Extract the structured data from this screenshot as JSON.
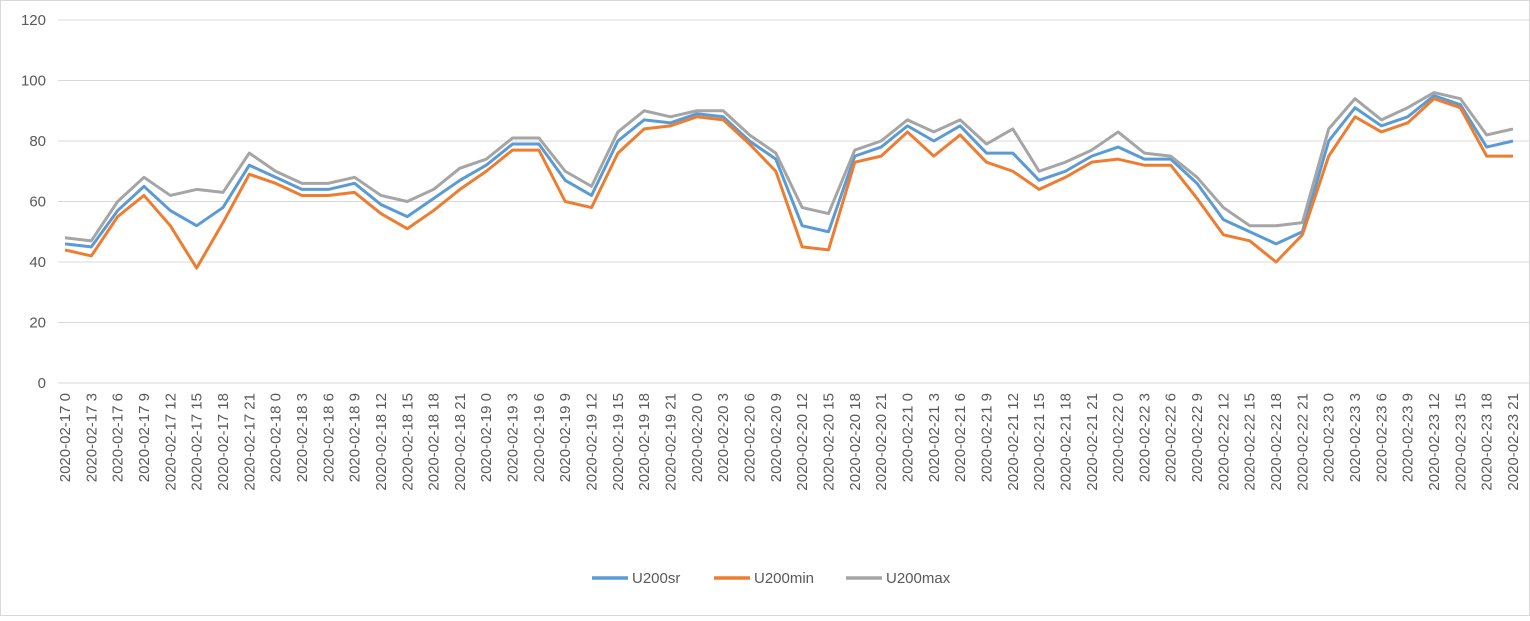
{
  "chart_data": {
    "type": "line",
    "categories": [
      "2020-02-17 0",
      "2020-02-17 3",
      "2020-02-17 6",
      "2020-02-17 9",
      "2020-02-17 12",
      "2020-02-17 15",
      "2020-02-17 18",
      "2020-02-17 21",
      "2020-02-18 0",
      "2020-02-18 3",
      "2020-02-18 6",
      "2020-02-18 9",
      "2020-02-18 12",
      "2020-02-18 15",
      "2020-02-18 18",
      "2020-02-18 21",
      "2020-02-19 0",
      "2020-02-19 3",
      "2020-02-19 6",
      "2020-02-19 9",
      "2020-02-19 12",
      "2020-02-19 15",
      "2020-02-19 18",
      "2020-02-19 21",
      "2020-02-20 0",
      "2020-02-20 3",
      "2020-02-20 6",
      "2020-02-20 9",
      "2020-02-20 12",
      "2020-02-20 15",
      "2020-02-20 18",
      "2020-02-20 21",
      "2020-02-21 0",
      "2020-02-21 3",
      "2020-02-21 6",
      "2020-02-21 9",
      "2020-02-21 12",
      "2020-02-21 15",
      "2020-02-21 18",
      "2020-02-21 21",
      "2020-02-22 0",
      "2020-02-22 3",
      "2020-02-22 6",
      "2020-02-22 9",
      "2020-02-22 12",
      "2020-02-22 15",
      "2020-02-22 18",
      "2020-02-22 21",
      "2020-02-23 0",
      "2020-02-23 3",
      "2020-02-23 6",
      "2020-02-23 9",
      "2020-02-23 12",
      "2020-02-23 15",
      "2020-02-23 18",
      "2020-02-23 21"
    ],
    "series": [
      {
        "name": "U200sr",
        "color": "#5b9bd5",
        "values": [
          46,
          45,
          57,
          65,
          57,
          52,
          58,
          72,
          68,
          64,
          64,
          66,
          59,
          55,
          61,
          67,
          72,
          79,
          79,
          67,
          62,
          80,
          87,
          86,
          89,
          88,
          80,
          74,
          52,
          50,
          75,
          78,
          85,
          80,
          85,
          76,
          76,
          67,
          70,
          75,
          78,
          74,
          74,
          66,
          54,
          50,
          46,
          50,
          80,
          91,
          85,
          88,
          95,
          92,
          78,
          80
        ]
      },
      {
        "name": "U200min",
        "color": "#ed7d31",
        "values": [
          44,
          42,
          55,
          62,
          52,
          38,
          53,
          69,
          66,
          62,
          62,
          63,
          56,
          51,
          57,
          64,
          70,
          77,
          77,
          60,
          58,
          76,
          84,
          85,
          88,
          87,
          79,
          70,
          45,
          44,
          73,
          75,
          83,
          75,
          82,
          73,
          70,
          64,
          68,
          73,
          74,
          72,
          72,
          61,
          49,
          47,
          40,
          49,
          75,
          88,
          83,
          86,
          94,
          91,
          75,
          75
        ]
      },
      {
        "name": "U200max",
        "color": "#a5a5a5",
        "values": [
          48,
          47,
          60,
          68,
          62,
          64,
          63,
          76,
          70,
          66,
          66,
          68,
          62,
          60,
          64,
          71,
          74,
          81,
          81,
          70,
          65,
          83,
          90,
          88,
          90,
          90,
          82,
          76,
          58,
          56,
          77,
          80,
          87,
          83,
          87,
          79,
          84,
          70,
          73,
          77,
          83,
          76,
          75,
          68,
          58,
          52,
          52,
          53,
          84,
          94,
          87,
          91,
          96,
          94,
          82,
          84
        ]
      }
    ],
    "ylim": [
      0,
      120
    ],
    "yticks": [
      0,
      20,
      40,
      60,
      80,
      100,
      120
    ],
    "grid": true,
    "legend": "bottom"
  }
}
